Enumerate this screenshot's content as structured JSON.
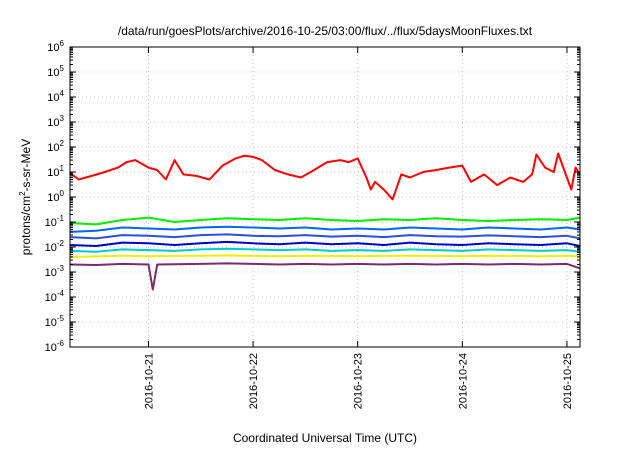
{
  "chart_data": {
    "type": "line",
    "title": "/data/run/goesPlots/archive/2016-10-25/03:00/flux/../flux/5daysMoonFluxes.txt",
    "xlabel": "Coordinated Universal Time (UTC)",
    "ylabel": "protons/cm²-s-sr-MeV",
    "ylabel_parts": {
      "base": "protons/cm",
      "sup": "2",
      "rest": "-s-sr-MeV"
    },
    "yscale": "log",
    "ylim_exponent": [
      -6,
      6
    ],
    "yticks": [
      {
        "base": "10",
        "exp": "6"
      },
      {
        "base": "10",
        "exp": "5"
      },
      {
        "base": "10",
        "exp": "4"
      },
      {
        "base": "10",
        "exp": "3"
      },
      {
        "base": "10",
        "exp": "2"
      },
      {
        "base": "10",
        "exp": "1"
      },
      {
        "base": "10",
        "exp": "0"
      },
      {
        "base": "10",
        "exp": "-1"
      },
      {
        "base": "10",
        "exp": "-2"
      },
      {
        "base": "10",
        "exp": "-3"
      },
      {
        "base": "10",
        "exp": "-4"
      },
      {
        "base": "10",
        "exp": "-5"
      },
      {
        "base": "10",
        "exp": "-6"
      }
    ],
    "xlim": [
      "2016-10-20T06:00",
      "2016-10-25T03:00"
    ],
    "xticks": [
      "2016-10-21",
      "2016-10-22",
      "2016-10-23",
      "2016-10-24",
      "2016-10-25"
    ],
    "grid": true,
    "series": [
      {
        "color": "#ff0000",
        "points": [
          [
            "2016-10-20T06:00",
            9
          ],
          [
            "2016-10-20T08:00",
            5
          ],
          [
            "2016-10-20T11:00",
            7
          ],
          [
            "2016-10-20T14:00",
            10
          ],
          [
            "2016-10-20T17:00",
            15
          ],
          [
            "2016-10-20T19:00",
            25
          ],
          [
            "2016-10-20T21:00",
            30
          ],
          [
            "2016-10-21T00:00",
            15
          ],
          [
            "2016-10-21T02:00",
            12
          ],
          [
            "2016-10-21T04:00",
            5
          ],
          [
            "2016-10-21T06:00",
            30
          ],
          [
            "2016-10-21T08:00",
            8
          ],
          [
            "2016-10-21T11:00",
            7
          ],
          [
            "2016-10-21T14:00",
            5
          ],
          [
            "2016-10-21T17:00",
            18
          ],
          [
            "2016-10-21T20:00",
            35
          ],
          [
            "2016-10-21T22:00",
            45
          ],
          [
            "2016-10-22T00:00",
            40
          ],
          [
            "2016-10-22T02:00",
            30
          ],
          [
            "2016-10-22T05:00",
            12
          ],
          [
            "2016-10-22T08:00",
            8
          ],
          [
            "2016-10-22T11:00",
            6
          ],
          [
            "2016-10-22T14:00",
            12
          ],
          [
            "2016-10-22T17:00",
            25
          ],
          [
            "2016-10-22T20:00",
            30
          ],
          [
            "2016-10-22T22:00",
            25
          ],
          [
            "2016-10-23T00:00",
            35
          ],
          [
            "2016-10-23T02:00",
            6
          ],
          [
            "2016-10-23T03:00",
            2
          ],
          [
            "2016-10-23T04:00",
            4
          ],
          [
            "2016-10-23T06:00",
            2
          ],
          [
            "2016-10-23T08:00",
            0.8
          ],
          [
            "2016-10-23T10:00",
            8
          ],
          [
            "2016-10-23T12:00",
            6
          ],
          [
            "2016-10-23T15:00",
            10
          ],
          [
            "2016-10-23T18:00",
            12
          ],
          [
            "2016-10-23T21:00",
            15
          ],
          [
            "2016-10-24T00:00",
            18
          ],
          [
            "2016-10-24T02:00",
            4
          ],
          [
            "2016-10-24T05:00",
            8
          ],
          [
            "2016-10-24T08:00",
            3
          ],
          [
            "2016-10-24T11:00",
            6
          ],
          [
            "2016-10-24T14:00",
            4
          ],
          [
            "2016-10-24T16:00",
            8
          ],
          [
            "2016-10-24T17:00",
            50
          ],
          [
            "2016-10-24T19:00",
            15
          ],
          [
            "2016-10-24T21:00",
            10
          ],
          [
            "2016-10-24T22:00",
            55
          ],
          [
            "2016-10-25T00:00",
            6
          ],
          [
            "2016-10-25T01:00",
            2
          ],
          [
            "2016-10-25T02:00",
            15
          ],
          [
            "2016-10-25T03:00",
            8
          ]
        ]
      },
      {
        "color": "#00ee00",
        "points": [
          [
            "2016-10-20T06:00",
            0.09
          ],
          [
            "2016-10-20T12:00",
            0.08
          ],
          [
            "2016-10-20T18:00",
            0.12
          ],
          [
            "2016-10-21T00:00",
            0.15
          ],
          [
            "2016-10-21T06:00",
            0.1
          ],
          [
            "2016-10-21T12:00",
            0.12
          ],
          [
            "2016-10-21T18:00",
            0.14
          ],
          [
            "2016-10-22T00:00",
            0.13
          ],
          [
            "2016-10-22T06:00",
            0.12
          ],
          [
            "2016-10-22T12:00",
            0.14
          ],
          [
            "2016-10-22T18:00",
            0.12
          ],
          [
            "2016-10-23T00:00",
            0.11
          ],
          [
            "2016-10-23T06:00",
            0.13
          ],
          [
            "2016-10-23T12:00",
            0.12
          ],
          [
            "2016-10-23T18:00",
            0.14
          ],
          [
            "2016-10-24T00:00",
            0.12
          ],
          [
            "2016-10-24T06:00",
            0.11
          ],
          [
            "2016-10-24T12:00",
            0.12
          ],
          [
            "2016-10-24T18:00",
            0.13
          ],
          [
            "2016-10-25T00:00",
            0.12
          ],
          [
            "2016-10-25T03:00",
            0.15
          ]
        ]
      },
      {
        "color": "#0066ff",
        "points": [
          [
            "2016-10-20T06:00",
            0.04
          ],
          [
            "2016-10-20T12:00",
            0.045
          ],
          [
            "2016-10-20T18:00",
            0.06
          ],
          [
            "2016-10-21T00:00",
            0.055
          ],
          [
            "2016-10-21T06:00",
            0.05
          ],
          [
            "2016-10-21T12:00",
            0.06
          ],
          [
            "2016-10-21T18:00",
            0.065
          ],
          [
            "2016-10-22T00:00",
            0.06
          ],
          [
            "2016-10-22T06:00",
            0.055
          ],
          [
            "2016-10-22T12:00",
            0.06
          ],
          [
            "2016-10-22T18:00",
            0.05
          ],
          [
            "2016-10-23T00:00",
            0.055
          ],
          [
            "2016-10-23T06:00",
            0.05
          ],
          [
            "2016-10-23T12:00",
            0.06
          ],
          [
            "2016-10-23T18:00",
            0.055
          ],
          [
            "2016-10-24T00:00",
            0.05
          ],
          [
            "2016-10-24T06:00",
            0.06
          ],
          [
            "2016-10-24T12:00",
            0.055
          ],
          [
            "2016-10-24T18:00",
            0.05
          ],
          [
            "2016-10-25T00:00",
            0.06
          ],
          [
            "2016-10-25T03:00",
            0.05
          ]
        ]
      },
      {
        "color": "#2a4fd8",
        "points": [
          [
            "2016-10-20T06:00",
            0.025
          ],
          [
            "2016-10-20T12:00",
            0.022
          ],
          [
            "2016-10-20T18:00",
            0.03
          ],
          [
            "2016-10-21T00:00",
            0.028
          ],
          [
            "2016-10-21T06:00",
            0.025
          ],
          [
            "2016-10-21T12:00",
            0.03
          ],
          [
            "2016-10-21T18:00",
            0.032
          ],
          [
            "2016-10-22T00:00",
            0.028
          ],
          [
            "2016-10-22T06:00",
            0.027
          ],
          [
            "2016-10-22T12:00",
            0.03
          ],
          [
            "2016-10-22T18:00",
            0.026
          ],
          [
            "2016-10-23T00:00",
            0.028
          ],
          [
            "2016-10-23T06:00",
            0.025
          ],
          [
            "2016-10-23T12:00",
            0.03
          ],
          [
            "2016-10-23T18:00",
            0.027
          ],
          [
            "2016-10-24T00:00",
            0.026
          ],
          [
            "2016-10-24T06:00",
            0.029
          ],
          [
            "2016-10-24T12:00",
            0.027
          ],
          [
            "2016-10-24T18:00",
            0.025
          ],
          [
            "2016-10-25T00:00",
            0.028
          ],
          [
            "2016-10-25T03:00",
            0.022
          ]
        ]
      },
      {
        "color": "#0000cc",
        "points": [
          [
            "2016-10-20T06:00",
            0.012
          ],
          [
            "2016-10-20T12:00",
            0.011
          ],
          [
            "2016-10-20T18:00",
            0.015
          ],
          [
            "2016-10-21T00:00",
            0.014
          ],
          [
            "2016-10-21T06:00",
            0.012
          ],
          [
            "2016-10-21T12:00",
            0.014
          ],
          [
            "2016-10-21T18:00",
            0.016
          ],
          [
            "2016-10-22T00:00",
            0.014
          ],
          [
            "2016-10-22T06:00",
            0.013
          ],
          [
            "2016-10-22T12:00",
            0.015
          ],
          [
            "2016-10-22T18:00",
            0.013
          ],
          [
            "2016-10-23T00:00",
            0.014
          ],
          [
            "2016-10-23T06:00",
            0.012
          ],
          [
            "2016-10-23T12:00",
            0.015
          ],
          [
            "2016-10-23T18:00",
            0.013
          ],
          [
            "2016-10-24T00:00",
            0.012
          ],
          [
            "2016-10-24T06:00",
            0.014
          ],
          [
            "2016-10-24T12:00",
            0.013
          ],
          [
            "2016-10-24T18:00",
            0.012
          ],
          [
            "2016-10-25T00:00",
            0.014
          ],
          [
            "2016-10-25T03:00",
            0.011
          ]
        ]
      },
      {
        "color": "#00cccc",
        "points": [
          [
            "2016-10-20T06:00",
            0.007
          ],
          [
            "2016-10-20T12:00",
            0.0065
          ],
          [
            "2016-10-20T18:00",
            0.008
          ],
          [
            "2016-10-21T00:00",
            0.0075
          ],
          [
            "2016-10-21T06:00",
            0.007
          ],
          [
            "2016-10-21T12:00",
            0.008
          ],
          [
            "2016-10-21T18:00",
            0.0085
          ],
          [
            "2016-10-22T00:00",
            0.008
          ],
          [
            "2016-10-22T06:00",
            0.0075
          ],
          [
            "2016-10-22T12:00",
            0.008
          ],
          [
            "2016-10-22T18:00",
            0.007
          ],
          [
            "2016-10-23T00:00",
            0.0075
          ],
          [
            "2016-10-23T06:00",
            0.007
          ],
          [
            "2016-10-23T12:00",
            0.008
          ],
          [
            "2016-10-23T18:00",
            0.0075
          ],
          [
            "2016-10-24T00:00",
            0.007
          ],
          [
            "2016-10-24T06:00",
            0.008
          ],
          [
            "2016-10-24T12:00",
            0.0075
          ],
          [
            "2016-10-24T18:00",
            0.007
          ],
          [
            "2016-10-25T00:00",
            0.0075
          ],
          [
            "2016-10-25T03:00",
            0.0065
          ]
        ]
      },
      {
        "color": "#eeee00",
        "points": [
          [
            "2016-10-20T06:00",
            0.004
          ],
          [
            "2016-10-20T12:00",
            0.0042
          ],
          [
            "2016-10-20T18:00",
            0.0045
          ],
          [
            "2016-10-21T00:00",
            0.0043
          ],
          [
            "2016-10-21T06:00",
            0.0044
          ],
          [
            "2016-10-21T12:00",
            0.0045
          ],
          [
            "2016-10-21T18:00",
            0.0046
          ],
          [
            "2016-10-22T00:00",
            0.0044
          ],
          [
            "2016-10-22T06:00",
            0.0043
          ],
          [
            "2016-10-22T12:00",
            0.0045
          ],
          [
            "2016-10-22T18:00",
            0.0044
          ],
          [
            "2016-10-23T00:00",
            0.0043
          ],
          [
            "2016-10-23T06:00",
            0.0044
          ],
          [
            "2016-10-23T12:00",
            0.0045
          ],
          [
            "2016-10-23T18:00",
            0.0044
          ],
          [
            "2016-10-24T00:00",
            0.0043
          ],
          [
            "2016-10-24T06:00",
            0.0045
          ],
          [
            "2016-10-24T12:00",
            0.0044
          ],
          [
            "2016-10-24T18:00",
            0.0043
          ],
          [
            "2016-10-25T00:00",
            0.0045
          ],
          [
            "2016-10-25T03:00",
            0.0042
          ]
        ]
      },
      {
        "color": "#7b2a6b",
        "points": [
          [
            "2016-10-20T06:00",
            0.002
          ],
          [
            "2016-10-20T12:00",
            0.0019
          ],
          [
            "2016-10-20T18:00",
            0.0021
          ],
          [
            "2016-10-21T00:00",
            0.002
          ],
          [
            "2016-10-21T01:00",
            0.0002
          ],
          [
            "2016-10-21T02:00",
            0.002
          ],
          [
            "2016-10-21T12:00",
            0.0021
          ],
          [
            "2016-10-21T18:00",
            0.0022
          ],
          [
            "2016-10-22T00:00",
            0.0021
          ],
          [
            "2016-10-22T06:00",
            0.002
          ],
          [
            "2016-10-22T12:00",
            0.0021
          ],
          [
            "2016-10-22T18:00",
            0.002
          ],
          [
            "2016-10-23T00:00",
            0.0021
          ],
          [
            "2016-10-23T06:00",
            0.002
          ],
          [
            "2016-10-23T12:00",
            0.0021
          ],
          [
            "2016-10-23T18:00",
            0.002
          ],
          [
            "2016-10-24T00:00",
            0.0021
          ],
          [
            "2016-10-24T06:00",
            0.002
          ],
          [
            "2016-10-24T12:00",
            0.0021
          ],
          [
            "2016-10-24T18:00",
            0.002
          ],
          [
            "2016-10-25T00:00",
            0.0021
          ],
          [
            "2016-10-25T03:00",
            0.0014
          ]
        ]
      }
    ]
  }
}
